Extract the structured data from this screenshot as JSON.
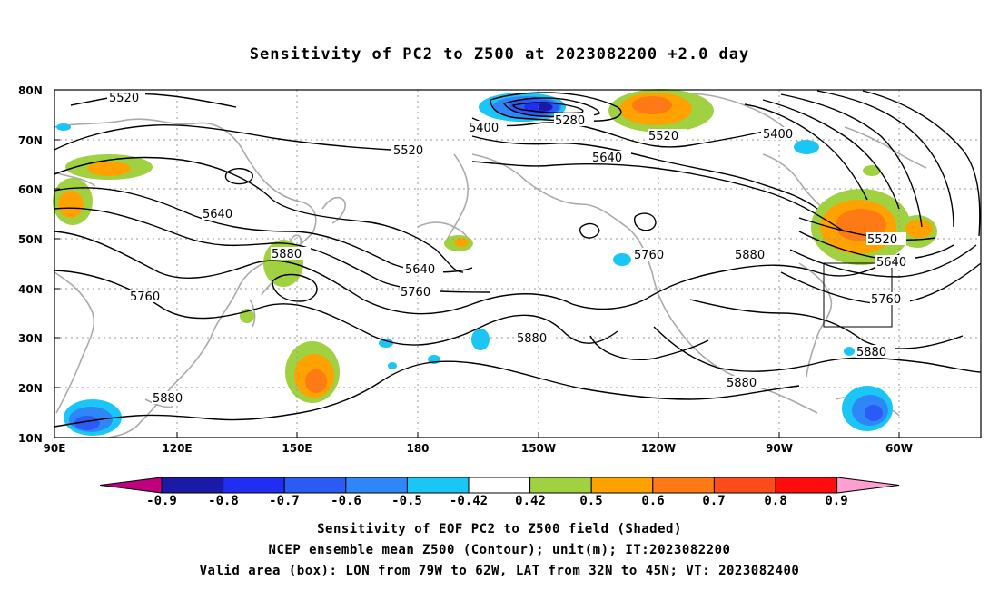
{
  "title": "Sensitivity of PC2 to Z500 at 2023082200 +2.0 day",
  "lat_labels": [
    "80N",
    "70N",
    "60N",
    "50N",
    "40N",
    "30N",
    "20N",
    "10N"
  ],
  "lon_labels": [
    "90E",
    "120E",
    "150E",
    "180",
    "150W",
    "120W",
    "90W",
    "60W"
  ],
  "contour_labels": [
    "5520",
    "5400",
    "5280",
    "5520",
    "5400",
    "5520",
    "5640",
    "5640",
    "5880",
    "5640",
    "5760",
    "5760",
    "5880",
    "5760",
    "5880",
    "5520",
    "5640",
    "5760",
    "5880",
    "5880",
    "5880"
  ],
  "colorbar": {
    "labels": [
      "-0.9",
      "-0.8",
      "-0.7",
      "-0.6",
      "-0.5",
      "-0.42",
      "0.42",
      "0.5",
      "0.6",
      "0.7",
      "0.8",
      "0.9"
    ],
    "colors": [
      "#1a1aa6",
      "#1f2ef0",
      "#2a5cf5",
      "#2f86f7",
      "#19c6f5",
      "#ffffff",
      "#9fd140",
      "#ffa200",
      "#ff7a14",
      "#ff4a1c",
      "#ff0c0c"
    ],
    "under_color": "#c0007f",
    "over_color": "#ff9ed0"
  },
  "valid_box": {
    "lon_from": "79W",
    "lon_to": "62W",
    "lat_from": "32N",
    "lat_to": "45N"
  },
  "captions": [
    "Sensitivity of EOF PC2 to Z500 field (Shaded)",
    "NCEP ensemble mean Z500 (Contour); unit(m); IT:2023082200",
    "Valid area (box): LON from 79W to 62W, LAT from 32N to 45N; VT: 2023082400"
  ]
}
